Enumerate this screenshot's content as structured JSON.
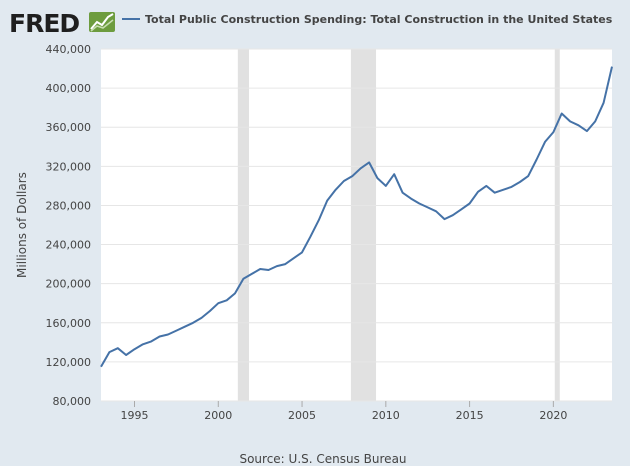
{
  "logo": {
    "text": "FRED"
  },
  "chart_data": {
    "type": "line",
    "title": "",
    "xlabel": "",
    "ylabel": "Millions of Dollars",
    "source": "Source: U.S. Census Bureau",
    "xlim": [
      "1993-01",
      "2023-07"
    ],
    "ylim": [
      80000,
      440000
    ],
    "x_ticks": [
      "1995",
      "2000",
      "2005",
      "2010",
      "2015",
      "2020"
    ],
    "y_ticks": [
      "80,000",
      "120,000",
      "160,000",
      "200,000",
      "240,000",
      "280,000",
      "320,000",
      "360,000",
      "400,000",
      "440,000"
    ],
    "grid": true,
    "legend": "top",
    "line_color": "#4572a7",
    "recessions": [
      {
        "start": "2001-03",
        "end": "2001-11"
      },
      {
        "start": "2007-12",
        "end": "2009-06"
      },
      {
        "start": "2020-02",
        "end": "2020-04"
      }
    ],
    "series": [
      {
        "name": "Total Public Construction Spending: Total Construction in the United States",
        "x": [
          "1993-01",
          "1993-07",
          "1994-01",
          "1994-07",
          "1995-01",
          "1995-07",
          "1996-01",
          "1996-07",
          "1997-01",
          "1997-07",
          "1998-01",
          "1998-07",
          "1999-01",
          "1999-07",
          "2000-01",
          "2000-07",
          "2001-01",
          "2001-07",
          "2002-01",
          "2002-07",
          "2003-01",
          "2003-07",
          "2004-01",
          "2004-07",
          "2005-01",
          "2005-07",
          "2006-01",
          "2006-07",
          "2007-01",
          "2007-07",
          "2008-01",
          "2008-07",
          "2009-01",
          "2009-07",
          "2010-01",
          "2010-07",
          "2011-01",
          "2011-07",
          "2012-01",
          "2012-07",
          "2013-01",
          "2013-07",
          "2014-01",
          "2014-07",
          "2015-01",
          "2015-07",
          "2016-01",
          "2016-07",
          "2017-01",
          "2017-07",
          "2018-01",
          "2018-07",
          "2019-01",
          "2019-07",
          "2020-01",
          "2020-07",
          "2021-01",
          "2021-07",
          "2022-01",
          "2022-07",
          "2023-01",
          "2023-07"
        ],
        "y": [
          115000,
          130000,
          134000,
          127000,
          133000,
          138000,
          141000,
          146000,
          148000,
          152000,
          156000,
          160000,
          165000,
          172000,
          180000,
          183000,
          190000,
          205000,
          210000,
          215000,
          214000,
          218000,
          220000,
          226000,
          232000,
          248000,
          265000,
          285000,
          296000,
          305000,
          310000,
          318000,
          324000,
          308000,
          300000,
          312000,
          293000,
          287000,
          282000,
          278000,
          274000,
          266000,
          270000,
          276000,
          282000,
          294000,
          300000,
          293000,
          296000,
          299000,
          304000,
          310000,
          327000,
          345000,
          355000,
          374000,
          366000,
          362000,
          356000,
          366000,
          385000,
          422000
        ]
      }
    ]
  }
}
